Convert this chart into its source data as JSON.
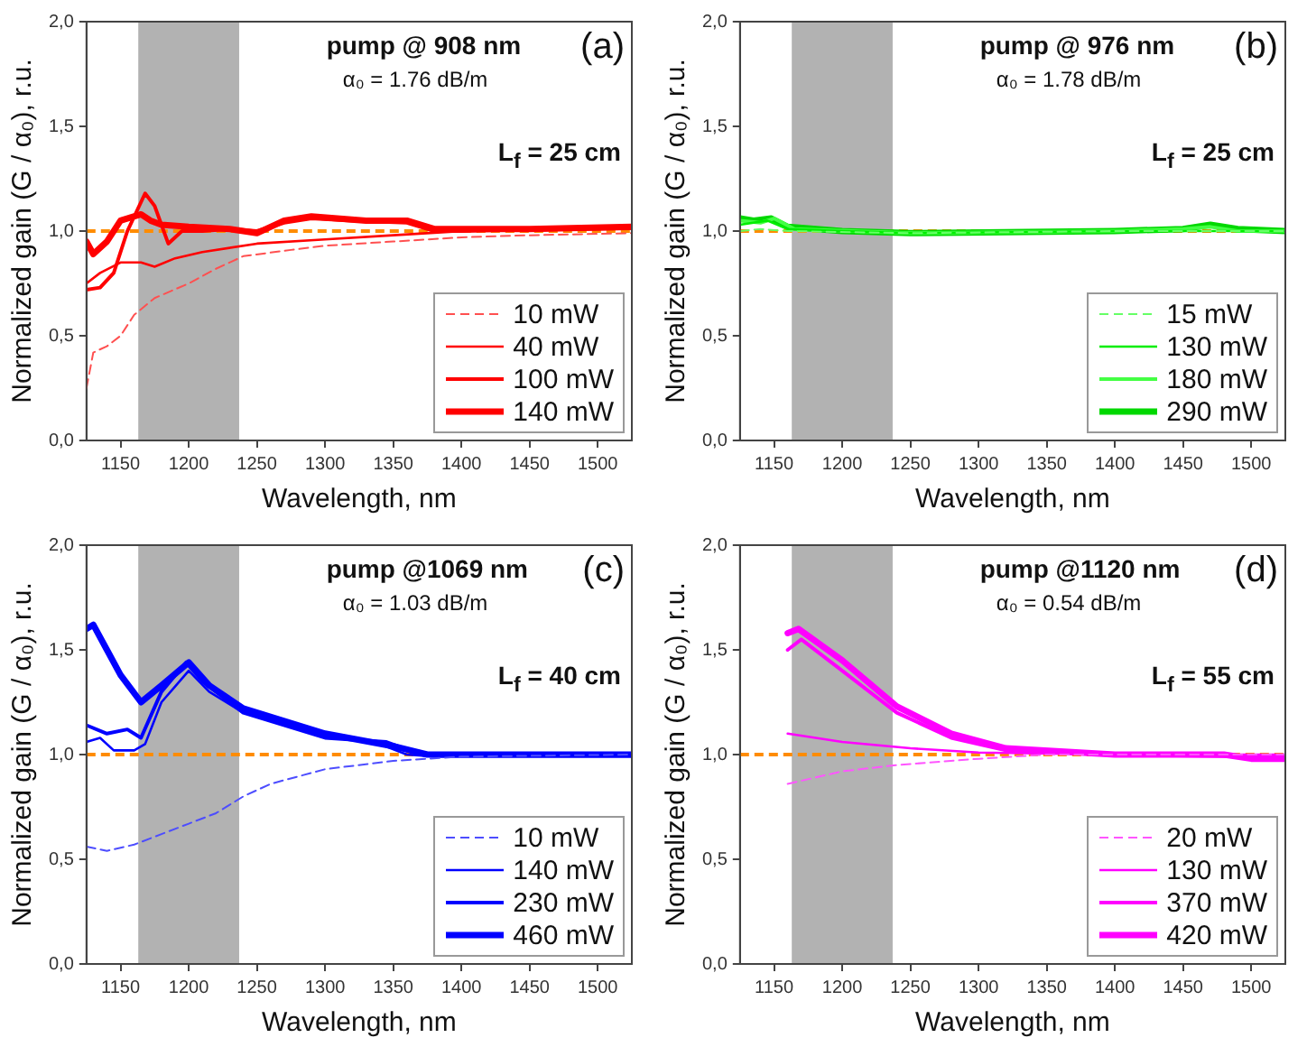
{
  "chart_data": [
    {
      "type": "line",
      "annotations": [
        "pump @ 908 nm",
        "α₀ = 1.76 dB/m",
        "(a)",
        "L$_{f}$ = 25 cm"
      ],
      "xlabel": "Wavelength, nm",
      "ylabel": "Normalized gain (G / α₀), r.u.",
      "xlim": [
        1125,
        1525
      ],
      "xticks": [
        1150,
        1200,
        1250,
        1300,
        1350,
        1400,
        1450,
        1500
      ],
      "ylim": [
        0,
        2
      ],
      "yticks": [
        {
          "value": 0,
          "label": "0,0"
        },
        {
          "value": 0.5,
          "label": "0,5"
        },
        {
          "value": 1,
          "label": "1,0"
        },
        {
          "value": 1.5,
          "label": "1,5"
        },
        {
          "value": 2,
          "label": "2,0"
        }
      ],
      "grid": false,
      "legend": "bottom right",
      "marker": "none",
      "ref_lines": [
        {
          "axis": "y",
          "value": 1,
          "color": "#ff8c00",
          "line_style": "dashed"
        }
      ],
      "bands": [
        {
          "axis": "x",
          "from": 1163,
          "to": 1237,
          "color": "#555555"
        }
      ],
      "series": [
        {
          "name": "10 mW",
          "color": "#ff5050",
          "line_style": "dashed",
          "x": [
            1125,
            1130,
            1140,
            1150,
            1160,
            1175,
            1200,
            1220,
            1240,
            1275,
            1300,
            1350,
            1400,
            1450,
            1525
          ],
          "values": [
            0.25,
            0.42,
            0.45,
            0.5,
            0.6,
            0.68,
            0.75,
            0.82,
            0.88,
            0.91,
            0.93,
            0.95,
            0.97,
            0.98,
            0.99
          ]
        },
        {
          "name": "40 mW",
          "color": "#ff0000",
          "line_style": "solid",
          "x": [
            1125,
            1135,
            1150,
            1165,
            1175,
            1190,
            1210,
            1250,
            1300,
            1350,
            1400,
            1525
          ],
          "values": [
            0.75,
            0.8,
            0.85,
            0.85,
            0.83,
            0.87,
            0.9,
            0.94,
            0.96,
            0.98,
            1.0,
            1.01
          ]
        },
        {
          "name": "100 mW",
          "color": "#ff0000",
          "line_style": "solid",
          "x": [
            1125,
            1135,
            1145,
            1155,
            1168,
            1175,
            1185,
            1195,
            1210,
            1230,
            1250,
            1270,
            1290,
            1320,
            1360,
            1380,
            1400,
            1525
          ],
          "values": [
            0.72,
            0.73,
            0.8,
            1.0,
            1.18,
            1.12,
            0.94,
            1.0,
            1.0,
            1.01,
            1.0,
            1.04,
            1.06,
            1.05,
            1.04,
            1.0,
            1.0,
            1.02
          ]
        },
        {
          "name": "140 mW",
          "color": "#ff0000",
          "line_style": "solid",
          "x": [
            1125,
            1130,
            1140,
            1150,
            1165,
            1172,
            1180,
            1200,
            1230,
            1250,
            1270,
            1290,
            1330,
            1360,
            1380,
            1450,
            1525
          ],
          "values": [
            0.95,
            0.89,
            0.95,
            1.05,
            1.08,
            1.05,
            1.03,
            1.02,
            1.01,
            0.99,
            1.05,
            1.07,
            1.05,
            1.05,
            1.01,
            1.01,
            1.02
          ]
        }
      ]
    },
    {
      "type": "line",
      "annotations": [
        "pump @ 976 nm",
        "α₀ = 1.78 dB/m",
        "(b)",
        "L$_{f}$ = 25 cm"
      ],
      "xlabel": "Wavelength, nm",
      "ylabel": "Normalized gain (G / α₀), r.u.",
      "xlim": [
        1125,
        1525
      ],
      "xticks": [
        1150,
        1200,
        1250,
        1300,
        1350,
        1400,
        1450,
        1500
      ],
      "ylim": [
        0,
        2
      ],
      "yticks": [
        {
          "value": 0,
          "label": "0,0"
        },
        {
          "value": 0.5,
          "label": "0,5"
        },
        {
          "value": 1,
          "label": "1,0"
        },
        {
          "value": 1.5,
          "label": "1,5"
        },
        {
          "value": 2,
          "label": "2,0"
        }
      ],
      "grid": false,
      "legend": "bottom right",
      "marker": "none",
      "ref_lines": [
        {
          "axis": "y",
          "value": 1,
          "color": "#ff8c00",
          "line_style": "dashed"
        }
      ],
      "bands": [
        {
          "axis": "x",
          "from": 1163,
          "to": 1237,
          "color": "#555555"
        }
      ],
      "series": [
        {
          "name": "15 mW",
          "color": "#66ff66",
          "line_style": "dashed",
          "x": [
            1125,
            1140,
            1160,
            1250,
            1400,
            1525
          ],
          "values": [
            1.0,
            1.01,
            1.0,
            0.99,
            1.0,
            1.0
          ]
        },
        {
          "name": "130 mW",
          "color": "#00ee00",
          "line_style": "solid",
          "x": [
            1125,
            1145,
            1160,
            1200,
            1250,
            1400,
            1525
          ],
          "values": [
            1.03,
            1.05,
            1.01,
            1.0,
            0.99,
            1.0,
            1.0
          ]
        },
        {
          "name": "180 mW",
          "color": "#44ff44",
          "line_style": "solid",
          "x": [
            1125,
            1140,
            1150,
            1165,
            1250,
            1400,
            1450,
            1470,
            1490,
            1525
          ],
          "values": [
            1.05,
            1.04,
            1.06,
            1.01,
            0.99,
            1.0,
            1.01,
            1.02,
            1.0,
            1.0
          ]
        },
        {
          "name": "290 mW",
          "color": "#00d800",
          "line_style": "solid",
          "x": [
            1125,
            1135,
            1148,
            1160,
            1200,
            1250,
            1400,
            1450,
            1470,
            1490,
            1525
          ],
          "values": [
            1.06,
            1.05,
            1.06,
            1.02,
            1.0,
            0.99,
            1.0,
            1.01,
            1.03,
            1.01,
            1.0
          ]
        }
      ]
    },
    {
      "type": "line",
      "annotations": [
        "pump @1069 nm",
        "α₀ = 1.03 dB/m",
        "(c)",
        "L$_{f}$ = 40 cm"
      ],
      "xlabel": "Wavelength, nm",
      "ylabel": "Normalized gain (G / α₀), r.u.",
      "xlim": [
        1125,
        1525
      ],
      "xticks": [
        1150,
        1200,
        1250,
        1300,
        1350,
        1400,
        1450,
        1500
      ],
      "ylim": [
        0,
        2
      ],
      "yticks": [
        {
          "value": 0,
          "label": "0,0"
        },
        {
          "value": 0.5,
          "label": "0,5"
        },
        {
          "value": 1,
          "label": "1,0"
        },
        {
          "value": 1.5,
          "label": "1,5"
        },
        {
          "value": 2,
          "label": "2,0"
        }
      ],
      "grid": false,
      "legend": "bottom right",
      "marker": "none",
      "ref_lines": [
        {
          "axis": "y",
          "value": 1,
          "color": "#ff8c00",
          "line_style": "dashed"
        }
      ],
      "bands": [
        {
          "axis": "x",
          "from": 1163,
          "to": 1237,
          "color": "#555555"
        }
      ],
      "series": [
        {
          "name": "10 mW",
          "color": "#4d4dff",
          "line_style": "dashed",
          "x": [
            1125,
            1140,
            1160,
            1180,
            1200,
            1220,
            1240,
            1260,
            1300,
            1350,
            1400,
            1525
          ],
          "values": [
            0.56,
            0.54,
            0.57,
            0.62,
            0.67,
            0.72,
            0.8,
            0.86,
            0.93,
            0.97,
            0.99,
            1.0
          ]
        },
        {
          "name": "140 mW",
          "color": "#0000ff",
          "line_style": "solid",
          "x": [
            1125,
            1135,
            1145,
            1160,
            1168,
            1180,
            1200,
            1215,
            1240,
            1300,
            1340,
            1360,
            1380,
            1525
          ],
          "values": [
            1.06,
            1.08,
            1.02,
            1.02,
            1.05,
            1.25,
            1.4,
            1.3,
            1.2,
            1.09,
            1.05,
            1.0,
            0.99,
            0.99
          ]
        },
        {
          "name": "230 mW",
          "color": "#0000ff",
          "line_style": "solid",
          "x": [
            1125,
            1140,
            1155,
            1165,
            1180,
            1198,
            1210,
            1240,
            1300,
            1345,
            1370,
            1400,
            1525
          ],
          "values": [
            1.14,
            1.1,
            1.12,
            1.08,
            1.3,
            1.44,
            1.35,
            1.2,
            1.08,
            1.06,
            1.0,
            1.0,
            1.0
          ]
        },
        {
          "name": "460 mW",
          "color": "#0000ff",
          "line_style": "solid",
          "x": [
            1125,
            1130,
            1140,
            1150,
            1165,
            1180,
            1200,
            1215,
            1240,
            1300,
            1350,
            1375,
            1525
          ],
          "values": [
            1.6,
            1.62,
            1.5,
            1.38,
            1.25,
            1.33,
            1.44,
            1.33,
            1.22,
            1.1,
            1.04,
            1.0,
            1.0
          ]
        }
      ]
    },
    {
      "type": "line",
      "annotations": [
        "pump @1120 nm",
        "α₀ = 0.54 dB/m",
        "(d)",
        "L$_{f}$ = 55 cm"
      ],
      "xlabel": "Wavelength, nm",
      "ylabel": "Normalized gain (G / α₀), r.u.",
      "xlim": [
        1125,
        1525
      ],
      "xticks": [
        1150,
        1200,
        1250,
        1300,
        1350,
        1400,
        1450,
        1500
      ],
      "ylim": [
        0,
        2
      ],
      "yticks": [
        {
          "value": 0,
          "label": "0,0"
        },
        {
          "value": 0.5,
          "label": "0,5"
        },
        {
          "value": 1,
          "label": "1,0"
        },
        {
          "value": 1.5,
          "label": "1,5"
        },
        {
          "value": 2,
          "label": "2,0"
        }
      ],
      "grid": false,
      "legend": "bottom right",
      "marker": "none",
      "ref_lines": [
        {
          "axis": "y",
          "value": 1,
          "color": "#ff8c00",
          "line_style": "dashed"
        }
      ],
      "bands": [
        {
          "axis": "x",
          "from": 1163,
          "to": 1237,
          "color": "#555555"
        }
      ],
      "series": [
        {
          "name": "20 mW",
          "color": "#ff55ff",
          "line_style": "dashed",
          "x": [
            1160,
            1200,
            1240,
            1300,
            1350,
            1525
          ],
          "values": [
            0.86,
            0.92,
            0.95,
            0.98,
            1.0,
            1.0
          ]
        },
        {
          "name": "130 mW",
          "color": "#ff00ff",
          "line_style": "solid",
          "x": [
            1160,
            1200,
            1250,
            1300,
            1400,
            1525
          ],
          "values": [
            1.1,
            1.06,
            1.03,
            1.01,
            1.0,
            1.0
          ]
        },
        {
          "name": "370 mW",
          "color": "#ff00ff",
          "line_style": "solid",
          "x": [
            1160,
            1170,
            1200,
            1240,
            1280,
            1320,
            1400,
            1500,
            1525
          ],
          "values": [
            1.5,
            1.55,
            1.4,
            1.2,
            1.08,
            1.02,
            1.0,
            0.99,
            0.99
          ]
        },
        {
          "name": "420 mW",
          "color": "#ff00ff",
          "line_style": "solid",
          "x": [
            1160,
            1168,
            1200,
            1240,
            1280,
            1320,
            1400,
            1480,
            1500,
            1525
          ],
          "values": [
            1.58,
            1.6,
            1.45,
            1.23,
            1.1,
            1.03,
            1.0,
            1.0,
            0.98,
            0.98
          ]
        }
      ]
    }
  ]
}
